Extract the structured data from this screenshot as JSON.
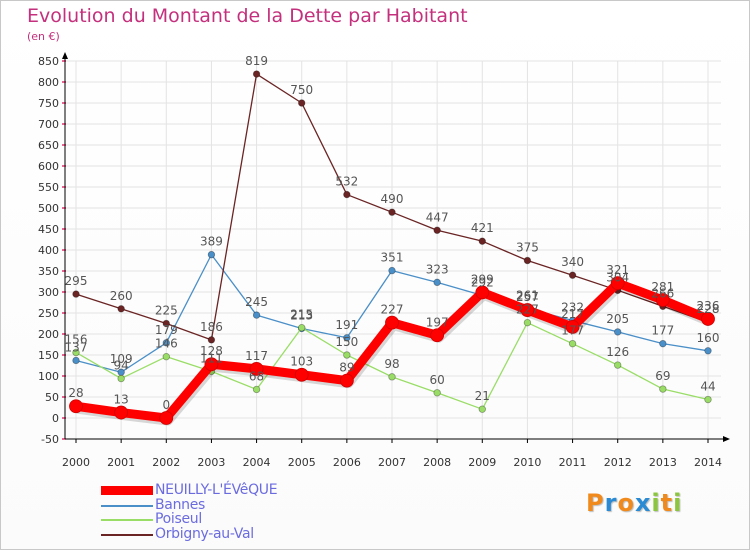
{
  "title": "Evolution du Montant de la Dette par Habitant",
  "subtitle": "(en €)",
  "brand": {
    "letters": [
      "P",
      "r",
      "o",
      "x",
      "i",
      "t",
      "i"
    ],
    "colors": [
      "#f08a1c",
      "#2a8bd4",
      "#f08a1c",
      "#2a8bd4",
      "#8cc63e",
      "#f08a1c",
      "#8cc63e"
    ]
  },
  "colors": {
    "title": "#c4307d",
    "axis": "#000000",
    "grid": "#e3e3e3",
    "tick_marker": "#e0004b",
    "label": "#555555",
    "legend_text": "#6b6be0"
  },
  "chart_data": {
    "type": "line",
    "title": "Evolution du Montant de la Dette par Habitant",
    "subtitle": "(en €)",
    "xlabel": "",
    "ylabel": "",
    "x": [
      2000,
      2001,
      2002,
      2003,
      2004,
      2005,
      2006,
      2007,
      2008,
      2009,
      2010,
      2011,
      2012,
      2013,
      2014
    ],
    "ylim": [
      -50,
      850
    ],
    "yticks": [
      -50,
      0,
      50,
      100,
      150,
      200,
      250,
      300,
      350,
      400,
      450,
      500,
      550,
      600,
      650,
      700,
      750,
      800,
      850
    ],
    "grid": true,
    "legend_position": "bottom-left",
    "series": [
      {
        "name": "NEUILLY-L'ÉVêQUE",
        "color": "#ff0000",
        "width": 9,
        "highlight": true,
        "values": [
          28,
          13,
          0,
          128,
          117,
          103,
          89,
          227,
          197,
          299,
          257,
          217,
          321,
          281,
          236
        ]
      },
      {
        "name": "Bannes",
        "color": "#4a8fc8",
        "width": 1.3,
        "highlight": false,
        "values": [
          137,
          109,
          179,
          389,
          245,
          213,
          191,
          351,
          323,
          292,
          261,
          232,
          205,
          177,
          160
        ]
      },
      {
        "name": "Poiseul",
        "color": "#99dd66",
        "width": 1.3,
        "highlight": false,
        "values": [
          156,
          94,
          146,
          111,
          68,
          215,
          150,
          98,
          60,
          21,
          227,
          177,
          126,
          69,
          44
        ]
      },
      {
        "name": "Orbigny-au-Val",
        "color": "#6b2424",
        "width": 1.3,
        "highlight": false,
        "values": [
          295,
          260,
          225,
          186,
          819,
          750,
          532,
          490,
          447,
          421,
          375,
          340,
          304,
          266,
          228
        ]
      }
    ]
  }
}
